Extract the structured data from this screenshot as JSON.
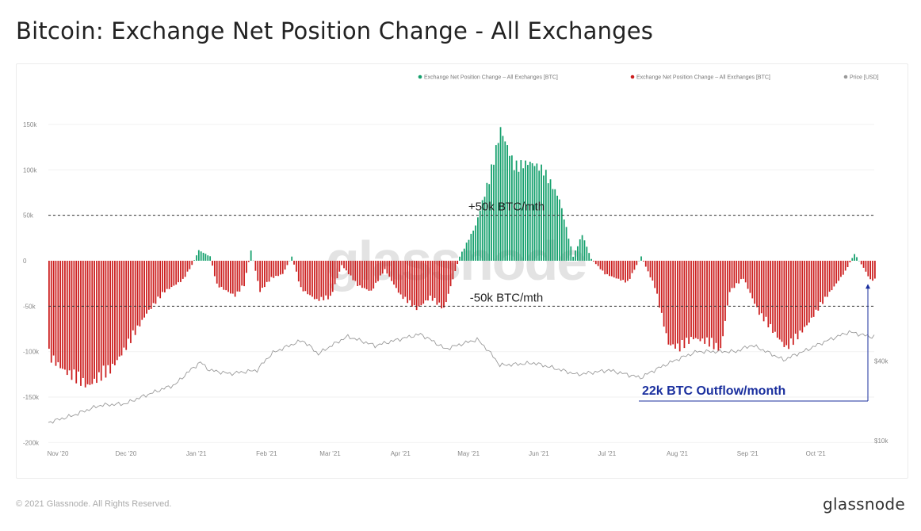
{
  "title": "Bitcoin: Exchange Net Position Change - All Exchanges",
  "footer": {
    "copyright": "© 2021 Glassnode. All Rights Reserved.",
    "brand": "glassnode"
  },
  "watermark": "glassnode",
  "colors": {
    "inflow": "#15a06d",
    "outflow": "#cc1f1f",
    "price": "#9a9a9a",
    "annotation_blue": "#1a2f9e"
  },
  "chart_data": {
    "type": "bar",
    "legend": {
      "placement": "top-right",
      "entries": [
        {
          "label": "Exchange Net Position Change – All Exchanges [BTC]",
          "color": "#15a06d"
        },
        {
          "label": "Exchange Net Position Change – All Exchanges [BTC]",
          "color": "#cc1f1f"
        },
        {
          "label": "Price [USD]",
          "color": "#9a9a9a"
        }
      ]
    },
    "y_left": {
      "ticks": [
        150000,
        100000,
        50000,
        0,
        -50000,
        -100000,
        -150000,
        -200000
      ],
      "tick_labels": [
        "150k",
        "100k",
        "50k",
        "0",
        "-50k",
        "-100k",
        "-150k",
        "-200k"
      ],
      "range": [
        -200000,
        180000
      ]
    },
    "y_right": {
      "ticks": [
        40000,
        10000
      ],
      "tick_labels": [
        "$40k",
        "$10k"
      ],
      "scale": "log"
    },
    "x_ticks": [
      "Nov '20",
      "Dec '20",
      "Jan '21",
      "Feb '21",
      "Mar '21",
      "Apr '21",
      "May '21",
      "Jun '21",
      "Jul '21",
      "Aug '21",
      "Sep '21",
      "Oct '21"
    ],
    "x_range": [
      "2020-11-01",
      "2021-10-31"
    ],
    "reference_lines": [
      {
        "value": 50000,
        "label": "+50k BTC/mth"
      },
      {
        "value": -50000,
        "label": "-50k BTC/mth"
      }
    ],
    "callout": {
      "label": "22k BTC Outflow/month",
      "value": -22000
    },
    "netflow_keyframes": [
      [
        "2020-11-01",
        -110000
      ],
      [
        "2020-11-10",
        -130000
      ],
      [
        "2020-11-18",
        -143000
      ],
      [
        "2020-11-28",
        -125000
      ],
      [
        "2020-12-06",
        -95000
      ],
      [
        "2020-12-14",
        -60000
      ],
      [
        "2020-12-22",
        -35000
      ],
      [
        "2020-12-30",
        -22000
      ],
      [
        "2021-01-03",
        -5000
      ],
      [
        "2021-01-06",
        12000
      ],
      [
        "2021-01-11",
        5000
      ],
      [
        "2021-01-14",
        -28000
      ],
      [
        "2021-01-22",
        -40000
      ],
      [
        "2021-01-26",
        -28000
      ],
      [
        "2021-01-29",
        12000
      ],
      [
        "2021-02-02",
        -35000
      ],
      [
        "2021-02-07",
        -20000
      ],
      [
        "2021-02-12",
        -15000
      ],
      [
        "2021-02-16",
        5000
      ],
      [
        "2021-02-20",
        -32000
      ],
      [
        "2021-02-27",
        -45000
      ],
      [
        "2021-03-05",
        -42000
      ],
      [
        "2021-03-10",
        -5000
      ],
      [
        "2021-03-17",
        -28000
      ],
      [
        "2021-03-23",
        -35000
      ],
      [
        "2021-03-29",
        -10000
      ],
      [
        "2021-04-05",
        -40000
      ],
      [
        "2021-04-12",
        -55000
      ],
      [
        "2021-04-18",
        -42000
      ],
      [
        "2021-04-24",
        -55000
      ],
      [
        "2021-05-01",
        5000
      ],
      [
        "2021-05-08",
        40000
      ],
      [
        "2021-05-14",
        95000
      ],
      [
        "2021-05-19",
        150000
      ],
      [
        "2021-05-25",
        110000
      ],
      [
        "2021-06-01",
        112000
      ],
      [
        "2021-06-07",
        105000
      ],
      [
        "2021-06-14",
        70000
      ],
      [
        "2021-06-20",
        5000
      ],
      [
        "2021-06-24",
        30000
      ],
      [
        "2021-06-28",
        2000
      ],
      [
        "2021-07-04",
        -15000
      ],
      [
        "2021-07-14",
        -25000
      ],
      [
        "2021-07-20",
        5000
      ],
      [
        "2021-07-26",
        -30000
      ],
      [
        "2021-08-01",
        -95000
      ],
      [
        "2021-08-06",
        -100000
      ],
      [
        "2021-08-12",
        -88000
      ],
      [
        "2021-08-18",
        -93000
      ],
      [
        "2021-08-24",
        -102000
      ],
      [
        "2021-08-28",
        -35000
      ],
      [
        "2021-09-03",
        -20000
      ],
      [
        "2021-09-10",
        -60000
      ],
      [
        "2021-09-16",
        -80000
      ],
      [
        "2021-09-22",
        -100000
      ],
      [
        "2021-09-26",
        -90000
      ],
      [
        "2021-10-02",
        -70000
      ],
      [
        "2021-10-10",
        -40000
      ],
      [
        "2021-10-18",
        -12000
      ],
      [
        "2021-10-22",
        8000
      ],
      [
        "2021-10-26",
        -8000
      ],
      [
        "2021-10-29",
        -22000
      ]
    ],
    "price_keyframes": [
      [
        "2020-11-01",
        13700
      ],
      [
        "2020-11-12",
        15500
      ],
      [
        "2020-11-24",
        18500
      ],
      [
        "2020-12-05",
        19000
      ],
      [
        "2020-12-17",
        23000
      ],
      [
        "2020-12-27",
        26500
      ],
      [
        "2021-01-07",
        39000
      ],
      [
        "2021-01-11",
        34000
      ],
      [
        "2021-01-20",
        32000
      ],
      [
        "2021-02-01",
        34000
      ],
      [
        "2021-02-08",
        46000
      ],
      [
        "2021-02-21",
        57000
      ],
      [
        "2021-02-28",
        45000
      ],
      [
        "2021-03-13",
        61000
      ],
      [
        "2021-03-25",
        52000
      ],
      [
        "2021-04-14",
        63500
      ],
      [
        "2021-04-25",
        49000
      ],
      [
        "2021-05-09",
        58000
      ],
      [
        "2021-05-19",
        37000
      ],
      [
        "2021-06-03",
        38500
      ],
      [
        "2021-06-22",
        31500
      ],
      [
        "2021-07-06",
        34000
      ],
      [
        "2021-07-20",
        29800
      ],
      [
        "2021-08-14",
        47000
      ],
      [
        "2021-08-31",
        47000
      ],
      [
        "2021-09-07",
        52500
      ],
      [
        "2021-09-21",
        40500
      ],
      [
        "2021-10-01",
        48000
      ],
      [
        "2021-10-20",
        66000
      ],
      [
        "2021-10-29",
        61000
      ]
    ]
  }
}
